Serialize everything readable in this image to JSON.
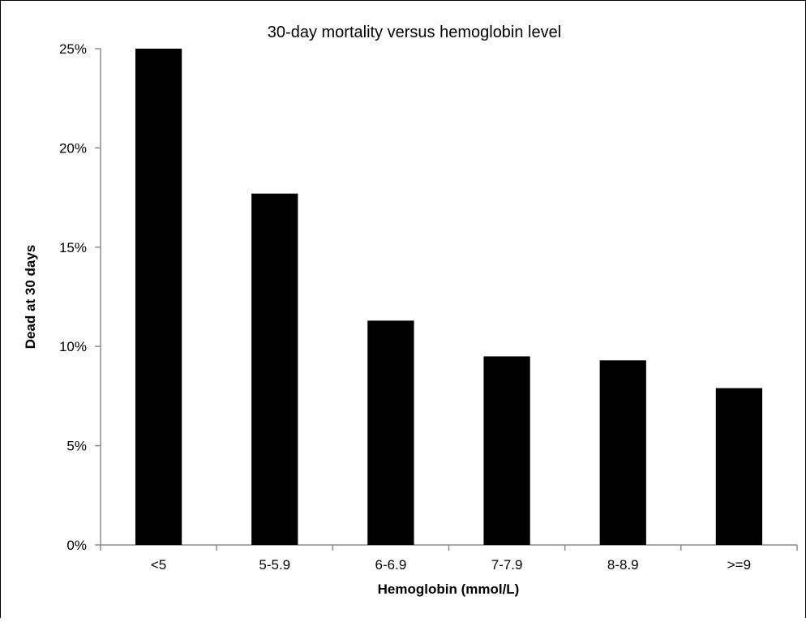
{
  "chart_data": {
    "type": "bar",
    "title": "30-day mortality versus hemoglobin level",
    "xlabel": "Hemoglobin (mmol/L)",
    "ylabel": "Dead at 30 days",
    "categories": [
      "<5",
      "5-5.9",
      "6-6.9",
      "7-7.9",
      "8-8.9",
      ">=9"
    ],
    "values": [
      25.0,
      17.7,
      11.3,
      9.5,
      9.3,
      7.9
    ],
    "ylim": [
      0,
      25
    ],
    "yticks": [
      0,
      5,
      10,
      15,
      20,
      25
    ],
    "ytick_labels": [
      "0%",
      "5%",
      "10%",
      "15%",
      "20%",
      "25%"
    ],
    "value_unit": "%",
    "grid": false,
    "legend": "none",
    "colors": {
      "bar": "#000000",
      "axis": "#8c8c8c"
    }
  }
}
